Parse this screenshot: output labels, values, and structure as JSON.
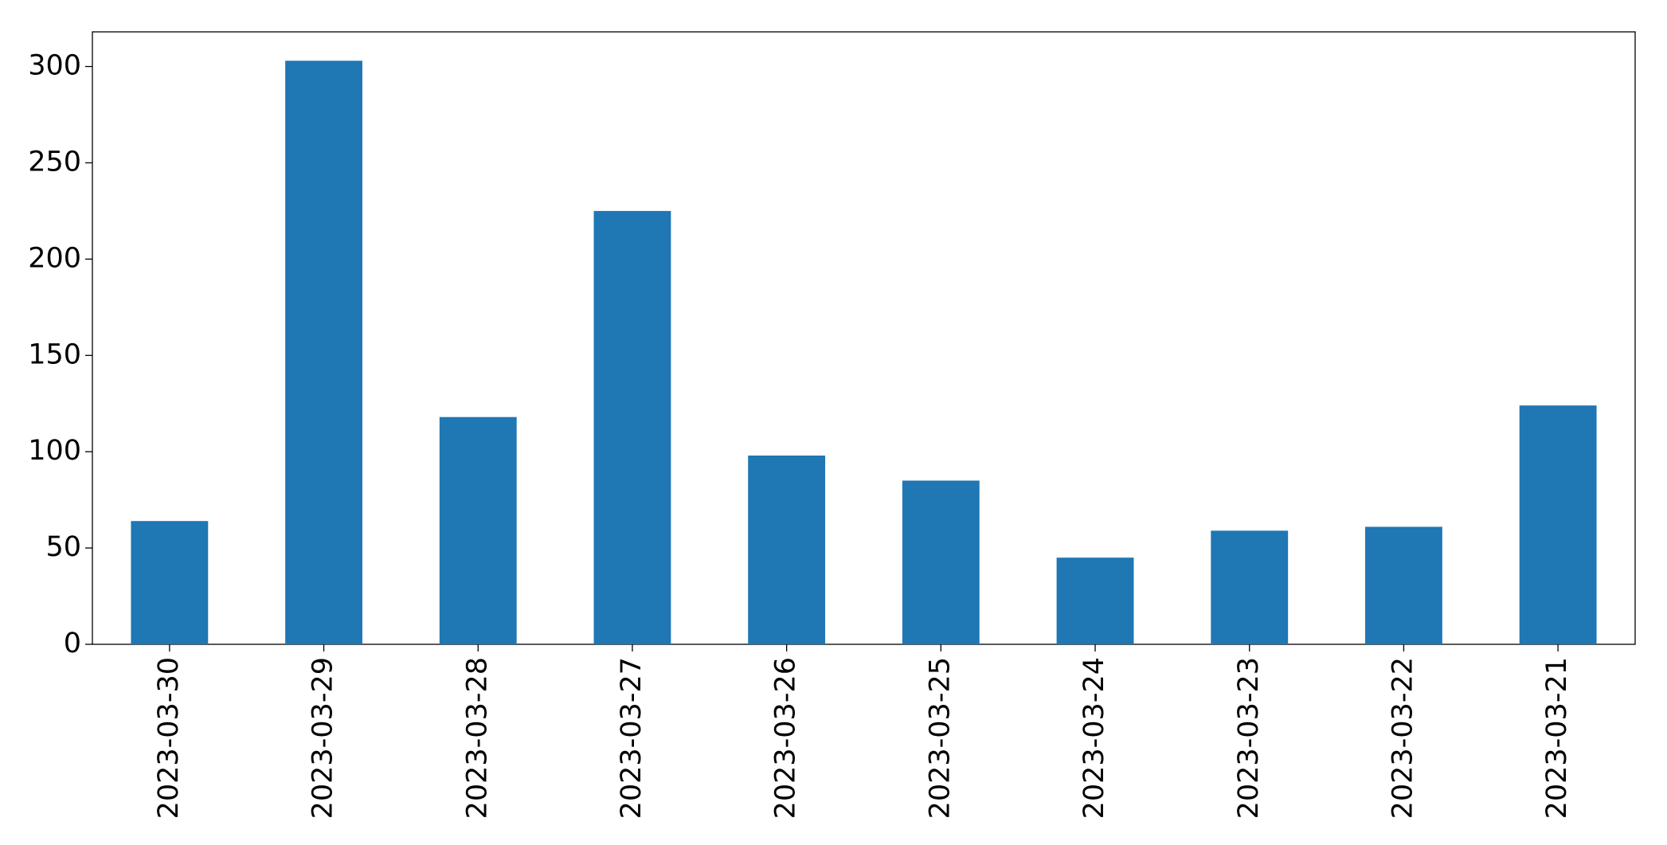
{
  "chart_data": {
    "type": "bar",
    "categories": [
      "2023-03-30",
      "2023-03-29",
      "2023-03-28",
      "2023-03-27",
      "2023-03-26",
      "2023-03-25",
      "2023-03-24",
      "2023-03-23",
      "2023-03-22",
      "2023-03-21"
    ],
    "values": [
      64,
      303,
      118,
      225,
      98,
      85,
      45,
      59,
      61,
      124
    ],
    "color": "#1f77b4",
    "ylim": [
      0,
      318
    ],
    "yticks": [
      0,
      50,
      100,
      150,
      200,
      250,
      300
    ],
    "grid": false
  }
}
